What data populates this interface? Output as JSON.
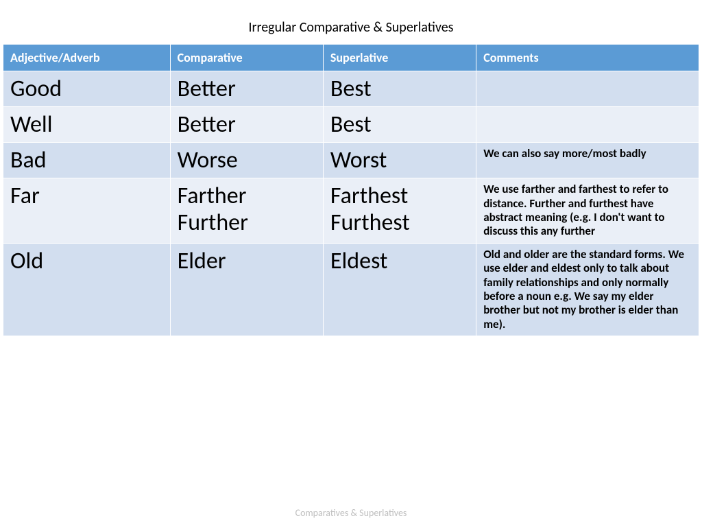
{
  "title": "Irregular Comparative & Superlatives",
  "footer": "Comparatives & Superlatives",
  "headers": {
    "col1": "Adjective/Adverb",
    "col2": "Comparative",
    "col3": "Superlative",
    "col4": "Comments"
  },
  "rows": [
    {
      "adj": "Good",
      "comp": "Better",
      "sup": "Best",
      "comment": ""
    },
    {
      "adj": "Well",
      "comp": "Better",
      "sup": "Best",
      "comment": ""
    },
    {
      "adj": "Bad",
      "comp": "Worse",
      "sup": "Worst",
      "comment": "We can also say more/most badly"
    },
    {
      "adj": "Far",
      "comp": "Farther Further",
      "sup": "Farthest Furthest",
      "comment": "We use farther and farthest  to refer to distance. Further and furthest have abstract meaning (e.g. I don't want to discuss this any further"
    },
    {
      "adj": "Old",
      "comp": "Elder",
      "sup": "Eldest",
      "comment": "Old and older are the standard forms. We use elder and eldest only to talk about family relationships and only normally before a noun e.g. We say my elder brother but not my brother is elder than me)."
    }
  ],
  "styling": {
    "header_bg": "#5b9bd5",
    "header_text": "#ffffff",
    "row_odd_bg": "#d2deef",
    "row_even_bg": "#eaeff7",
    "big_fontsize": 34,
    "comment_fontsize": 17,
    "header_fontsize": 18,
    "title_fontsize": 20,
    "footer_color": "#bfbfbf",
    "col_widths": [
      "24%",
      "22%",
      "22%",
      "32%"
    ]
  }
}
